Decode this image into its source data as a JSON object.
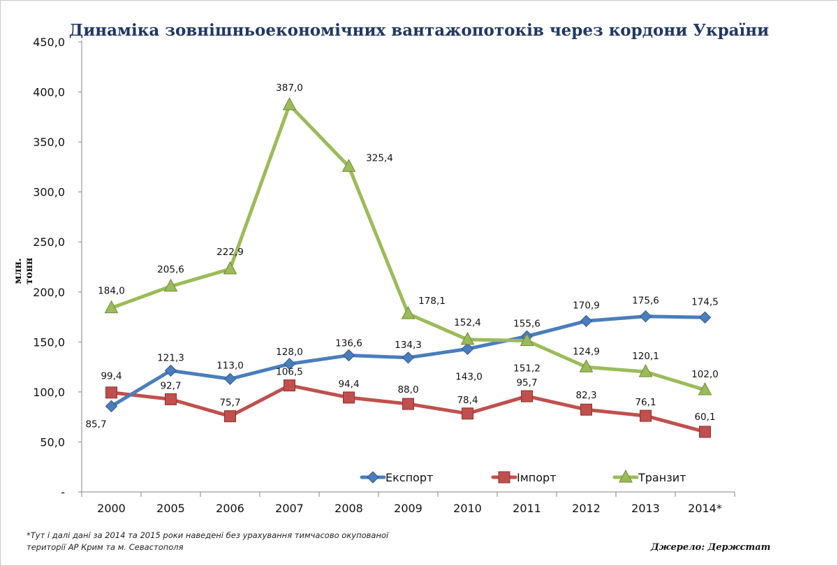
{
  "title": "Динаміка зовнішньоекономічних вантажопотоків через кордони України",
  "footnote": {
    "line1": "*Тут і далі дані за 2014  та 2015  роки наведені без урахування тимчасово окупованої",
    "line2": "території АР Крим та м. Севастополя"
  },
  "source": "Джерело: Держстат",
  "chart_data": {
    "type": "line",
    "title": "Динаміка зовнішньоекономічних вантажопотоків через кордони України",
    "xlabel": "",
    "ylabel": "млн. тонн",
    "categories": [
      "2000",
      "2005",
      "2006",
      "2007",
      "2008",
      "2009",
      "2010",
      "2011",
      "2012",
      "2013",
      "2014*"
    ],
    "y_ticks": [
      "-",
      "50,0",
      "100,0",
      "150,0",
      "200,0",
      "250,0",
      "300,0",
      "350,0",
      "400,0",
      "450,0"
    ],
    "ylim": [
      0,
      450
    ],
    "grid": false,
    "legend_position": "bottom",
    "series": [
      {
        "name": "Експорт",
        "color": "#4a7ebb",
        "marker": "diamond",
        "values": [
          85.7,
          121.3,
          113.0,
          128.0,
          136.6,
          134.3,
          143.0,
          155.6,
          170.9,
          175.6,
          174.5
        ],
        "labels": [
          "85,7",
          "121,3",
          "113,0",
          "128,0",
          "136,6",
          "134,3",
          "143,0",
          "155,6",
          "170,9",
          "175,6",
          "174,5"
        ]
      },
      {
        "name": "Імпорт",
        "color": "#c0504d",
        "marker": "square",
        "values": [
          99.4,
          92.7,
          75.7,
          106.5,
          94.4,
          88.0,
          78.4,
          95.7,
          82.3,
          76.1,
          60.1
        ],
        "labels": [
          "99,4",
          "92,7",
          "75,7",
          "106,5",
          "94,4",
          "88,0",
          "78,4",
          "95,7",
          "82,3",
          "76,1",
          "60,1"
        ]
      },
      {
        "name": "Транзит",
        "color": "#9bbb59",
        "marker": "triangle",
        "values": [
          184.0,
          205.6,
          222.9,
          387.0,
          325.4,
          178.1,
          152.4,
          151.2,
          124.9,
          120.1,
          102.0
        ],
        "labels": [
          "184,0",
          "205,6",
          "222,9",
          "387,0",
          "325,4",
          "178,1",
          "152,4",
          "151,2",
          "124,9",
          "120,1",
          "102,0"
        ]
      }
    ]
  }
}
